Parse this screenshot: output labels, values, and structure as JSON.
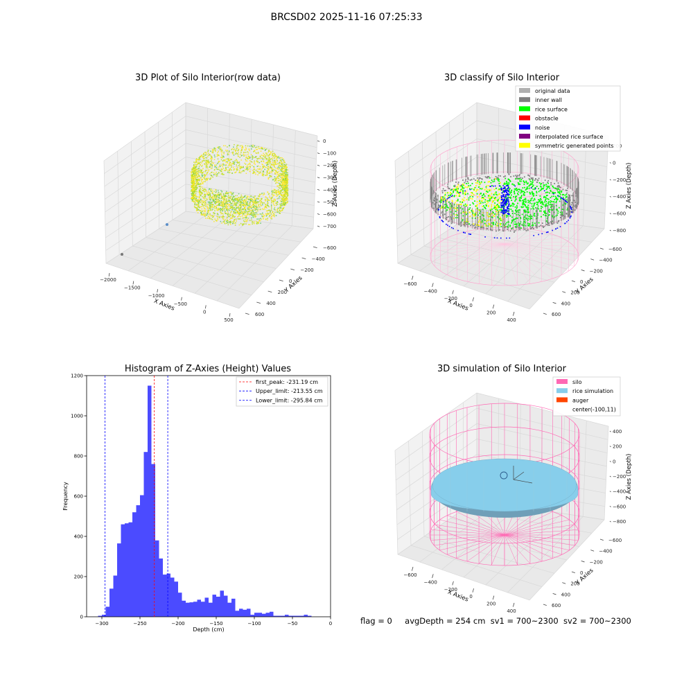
{
  "figure": {
    "suptitle": "BRCSD02 2025-11-16 07:25:33",
    "status": {
      "flag": "flag = 0",
      "avg_depth": "avgDepth = 254 cm",
      "sv1": "sv1 = 700~2300",
      "sv2": "sv2 = 700~2300"
    }
  },
  "chart_data": [
    {
      "type": "scatter",
      "projection": "3d",
      "title": "3D Plot of Silo Interior(row data)",
      "xlabel": "X Axies",
      "ylabel": "Y Axies",
      "zlabel": "Z Axies (Depth)",
      "x_ticks": [
        "−2000",
        "−1500",
        "−1000",
        "−500",
        "0",
        "500"
      ],
      "y_ticks": [
        "−600",
        "−400",
        "−200",
        "0",
        "200",
        "400",
        "600"
      ],
      "z_ticks": [
        "0",
        "−100",
        "−200",
        "−300",
        "−400",
        "−500",
        "−600",
        "−700"
      ],
      "xlim": [
        -2100,
        600
      ],
      "ylim": [
        -650,
        650
      ],
      "zlim": [
        -780,
        20
      ],
      "colormap": [
        "#440154",
        "#21918c",
        "#5ec962",
        "#bddf26",
        "#fde725"
      ],
      "grid": true
    },
    {
      "type": "scatter",
      "projection": "3d",
      "title": "3D classify of Silo Interior",
      "xlabel": "X Axies",
      "ylabel": "Y Axies",
      "zlabel": "Z Axies (Depth)",
      "x_ticks": [
        "−600",
        "−400",
        "−200",
        "0",
        "200",
        "400"
      ],
      "y_ticks": [
        "−600",
        "−400",
        "−200",
        "0",
        "200",
        "400",
        "600"
      ],
      "z_ticks": [
        "200",
        "0",
        "−200",
        "−400",
        "−600",
        "−800"
      ],
      "xlim": [
        -700,
        500
      ],
      "ylim": [
        -650,
        650
      ],
      "zlim": [
        -900,
        300
      ],
      "legend_position": "top-right",
      "legend": [
        {
          "label": "original data",
          "color": "#b0b0b0"
        },
        {
          "label": "inner wall",
          "color": "#808080"
        },
        {
          "label": "rice surface",
          "color": "#00ff00"
        },
        {
          "label": "obstacle",
          "color": "#ff0000"
        },
        {
          "label": "noise",
          "color": "#0000ff"
        },
        {
          "label": "interpolated rice surface",
          "color": "#800080"
        },
        {
          "label": "symmetric generated points",
          "color": "#ffff00"
        }
      ],
      "grid": true
    },
    {
      "type": "bar",
      "title": "Histogram of Z-Axies (Height) Values",
      "xlabel": "Depth (cm)",
      "ylabel": "Frequency",
      "xlim": [
        -320,
        0
      ],
      "ylim": [
        0,
        1200
      ],
      "x_ticks": [
        -300,
        -250,
        -200,
        -150,
        -100,
        -50,
        0
      ],
      "y_ticks": [
        0,
        200,
        400,
        600,
        800,
        1000,
        1200
      ],
      "bar_color": "#4b4bff",
      "bin_edges": [
        -305,
        -300,
        -295,
        -290,
        -285,
        -280,
        -275,
        -270,
        -265,
        -260,
        -255,
        -250,
        -245,
        -240,
        -235,
        -230,
        -225,
        -220,
        -215,
        -210,
        -205,
        -200,
        -195,
        -190,
        -185,
        -180,
        -175,
        -170,
        -165,
        -160,
        -155,
        -150,
        -145,
        -140,
        -135,
        -130,
        -125,
        -120,
        -115,
        -110,
        -105,
        -100,
        -95,
        -90,
        -85,
        -80,
        -75,
        -70,
        -65,
        -60,
        -55,
        -50,
        -45,
        -40,
        -35,
        -30,
        -25,
        -20,
        -15,
        -10
      ],
      "values": [
        5,
        10,
        50,
        140,
        205,
        365,
        460,
        465,
        470,
        520,
        555,
        605,
        820,
        1150,
        760,
        380,
        290,
        210,
        215,
        195,
        175,
        120,
        80,
        70,
        72,
        75,
        85,
        75,
        95,
        70,
        110,
        100,
        130,
        105,
        70,
        90,
        30,
        40,
        35,
        40,
        10,
        20,
        20,
        15,
        20,
        25,
        5,
        5,
        5,
        10,
        5,
        5,
        5,
        5,
        10,
        5,
        0,
        0,
        0
      ],
      "reference_lines": [
        {
          "x": -231.19,
          "label": "first_peak: -231.19 cm",
          "color": "#ff0000"
        },
        {
          "x": -213.55,
          "label": "Upper_limit: -213.55 cm",
          "color": "#0000ff"
        },
        {
          "x": -295.84,
          "label": "Lower_limit: -295.84 cm",
          "color": "#0000ff"
        }
      ],
      "legend_position": "top-right"
    },
    {
      "type": "surface",
      "projection": "3d",
      "title": "3D simulation of Silo Interior",
      "xlabel": "X Axies",
      "ylabel": "Y Axies",
      "zlabel": "Z Axies (Depth)",
      "x_ticks": [
        "−600",
        "−400",
        "−200",
        "0",
        "200",
        "400"
      ],
      "y_ticks": [
        "−600",
        "−400",
        "−200",
        "0",
        "200",
        "400",
        "600"
      ],
      "z_ticks": [
        "400",
        "200",
        "0",
        "−200",
        "−400",
        "−600",
        "−800"
      ],
      "xlim": [
        -700,
        500
      ],
      "ylim": [
        -650,
        650
      ],
      "zlim": [
        -900,
        450
      ],
      "legend_position": "top-right",
      "legend": [
        {
          "label": "silo",
          "color": "#ff69b4"
        },
        {
          "label": "rice simulation",
          "color": "#87ceeb"
        },
        {
          "label": "auger",
          "color": "#ff4500"
        },
        {
          "label": "center(-100,11)",
          "color": ""
        }
      ],
      "grid": true
    }
  ]
}
